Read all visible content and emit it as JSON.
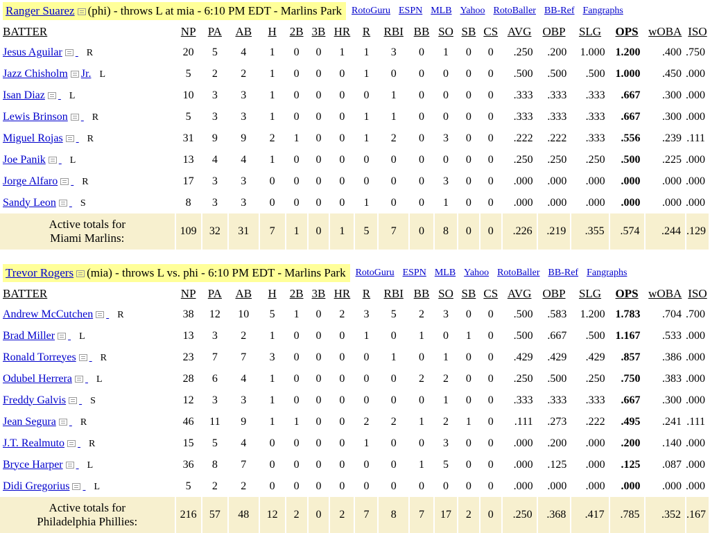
{
  "columns": [
    "BATTER",
    "NP",
    "PA",
    "AB",
    "H",
    "2B",
    "3B",
    "HR",
    "R",
    "RBI",
    "BB",
    "SO",
    "SB",
    "CS",
    "AVG",
    "OBP",
    "SLG",
    "OPS",
    "wOBA",
    "ISO"
  ],
  "links": [
    "RotoGuru",
    "ESPN",
    "MLB",
    "Yahoo",
    "RotoBaller",
    "BB-Ref",
    "Fangraphs"
  ],
  "games": [
    {
      "pitcher": "Ranger Suarez",
      "matchup": "(phi) - throws L at mia - 6:10 PM EDT - Marlins Park",
      "batters": [
        {
          "name": "Jesus Aguilar",
          "suffix": "",
          "hand": "R",
          "stats": [
            "20",
            "5",
            "4",
            "1",
            "0",
            "0",
            "1",
            "1",
            "3",
            "0",
            "1",
            "0",
            "0",
            ".250",
            ".200",
            "1.000",
            "1.200",
            ".400",
            ".750"
          ]
        },
        {
          "name": "Jazz Chisholm",
          "suffix": "Jr.",
          "hand": "L",
          "stats": [
            "5",
            "2",
            "2",
            "1",
            "0",
            "0",
            "0",
            "1",
            "0",
            "0",
            "0",
            "0",
            "0",
            ".500",
            ".500",
            ".500",
            "1.000",
            ".450",
            ".000"
          ]
        },
        {
          "name": "Isan Diaz",
          "suffix": "",
          "hand": "L",
          "stats": [
            "10",
            "3",
            "3",
            "1",
            "0",
            "0",
            "0",
            "0",
            "1",
            "0",
            "0",
            "0",
            "0",
            ".333",
            ".333",
            ".333",
            ".667",
            ".300",
            ".000"
          ]
        },
        {
          "name": "Lewis Brinson",
          "suffix": "",
          "hand": "R",
          "stats": [
            "5",
            "3",
            "3",
            "1",
            "0",
            "0",
            "0",
            "1",
            "1",
            "0",
            "0",
            "0",
            "0",
            ".333",
            ".333",
            ".333",
            ".667",
            ".300",
            ".000"
          ]
        },
        {
          "name": "Miguel Rojas",
          "suffix": "",
          "hand": "R",
          "stats": [
            "31",
            "9",
            "9",
            "2",
            "1",
            "0",
            "0",
            "1",
            "2",
            "0",
            "3",
            "0",
            "0",
            ".222",
            ".222",
            ".333",
            ".556",
            ".239",
            ".111"
          ]
        },
        {
          "name": "Joe Panik",
          "suffix": "",
          "hand": "L",
          "stats": [
            "13",
            "4",
            "4",
            "1",
            "0",
            "0",
            "0",
            "0",
            "0",
            "0",
            "0",
            "0",
            "0",
            ".250",
            ".250",
            ".250",
            ".500",
            ".225",
            ".000"
          ]
        },
        {
          "name": "Jorge Alfaro",
          "suffix": "",
          "hand": "R",
          "stats": [
            "17",
            "3",
            "3",
            "0",
            "0",
            "0",
            "0",
            "0",
            "0",
            "0",
            "3",
            "0",
            "0",
            ".000",
            ".000",
            ".000",
            ".000",
            ".000",
            ".000"
          ]
        },
        {
          "name": "Sandy Leon",
          "suffix": "",
          "hand": "S",
          "stats": [
            "8",
            "3",
            "3",
            "0",
            "0",
            "0",
            "0",
            "1",
            "0",
            "0",
            "1",
            "0",
            "0",
            ".000",
            ".000",
            ".000",
            ".000",
            ".000",
            ".000"
          ]
        }
      ],
      "totals": {
        "label_line1": "Active totals for",
        "label_line2": "Miami Marlins:",
        "stats": [
          "109",
          "32",
          "31",
          "7",
          "1",
          "0",
          "1",
          "5",
          "7",
          "0",
          "8",
          "0",
          "0",
          ".226",
          ".219",
          ".355",
          ".574",
          ".244",
          ".129"
        ]
      }
    },
    {
      "pitcher": "Trevor Rogers",
      "matchup": "(mia) - throws L vs. phi - 6:10 PM EDT - Marlins Park",
      "batters": [
        {
          "name": "Andrew McCutchen",
          "suffix": "",
          "hand": "R",
          "stats": [
            "38",
            "12",
            "10",
            "5",
            "1",
            "0",
            "2",
            "3",
            "5",
            "2",
            "3",
            "0",
            "0",
            ".500",
            ".583",
            "1.200",
            "1.783",
            ".704",
            ".700"
          ]
        },
        {
          "name": "Brad Miller",
          "suffix": "",
          "hand": "L",
          "stats": [
            "13",
            "3",
            "2",
            "1",
            "0",
            "0",
            "0",
            "1",
            "0",
            "1",
            "0",
            "1",
            "0",
            ".500",
            ".667",
            ".500",
            "1.167",
            ".533",
            ".000"
          ]
        },
        {
          "name": "Ronald Torreyes",
          "suffix": "",
          "hand": "R",
          "stats": [
            "23",
            "7",
            "7",
            "3",
            "0",
            "0",
            "0",
            "0",
            "1",
            "0",
            "1",
            "0",
            "0",
            ".429",
            ".429",
            ".429",
            ".857",
            ".386",
            ".000"
          ]
        },
        {
          "name": "Odubel Herrera",
          "suffix": "",
          "hand": "L",
          "stats": [
            "28",
            "6",
            "4",
            "1",
            "0",
            "0",
            "0",
            "0",
            "0",
            "2",
            "2",
            "0",
            "0",
            ".250",
            ".500",
            ".250",
            ".750",
            ".383",
            ".000"
          ]
        },
        {
          "name": "Freddy Galvis",
          "suffix": "",
          "hand": "S",
          "stats": [
            "12",
            "3",
            "3",
            "1",
            "0",
            "0",
            "0",
            "0",
            "0",
            "0",
            "1",
            "0",
            "0",
            ".333",
            ".333",
            ".333",
            ".667",
            ".300",
            ".000"
          ]
        },
        {
          "name": "Jean Segura",
          "suffix": "",
          "hand": "R",
          "stats": [
            "46",
            "11",
            "9",
            "1",
            "1",
            "0",
            "0",
            "2",
            "2",
            "1",
            "2",
            "1",
            "0",
            ".111",
            ".273",
            ".222",
            ".495",
            ".241",
            ".111"
          ]
        },
        {
          "name": "J.T. Realmuto",
          "suffix": "",
          "hand": "R",
          "stats": [
            "15",
            "5",
            "4",
            "0",
            "0",
            "0",
            "0",
            "1",
            "0",
            "0",
            "3",
            "0",
            "0",
            ".000",
            ".200",
            ".000",
            ".200",
            ".140",
            ".000"
          ]
        },
        {
          "name": "Bryce Harper",
          "suffix": "",
          "hand": "L",
          "stats": [
            "36",
            "8",
            "7",
            "0",
            "0",
            "0",
            "0",
            "0",
            "0",
            "1",
            "5",
            "0",
            "0",
            ".000",
            ".125",
            ".000",
            ".125",
            ".087",
            ".000"
          ]
        },
        {
          "name": "Didi Gregorius",
          "suffix": "",
          "hand": "L",
          "stats": [
            "5",
            "2",
            "2",
            "0",
            "0",
            "0",
            "0",
            "0",
            "0",
            "0",
            "0",
            "0",
            "0",
            ".000",
            ".000",
            ".000",
            ".000",
            ".000",
            ".000"
          ]
        }
      ],
      "totals": {
        "label_line1": "Active totals for",
        "label_line2": "Philadelphia Phillies:",
        "stats": [
          "216",
          "57",
          "48",
          "12",
          "2",
          "0",
          "2",
          "7",
          "8",
          "7",
          "17",
          "2",
          "0",
          ".250",
          ".368",
          ".417",
          ".785",
          ".352",
          ".167"
        ]
      }
    }
  ]
}
